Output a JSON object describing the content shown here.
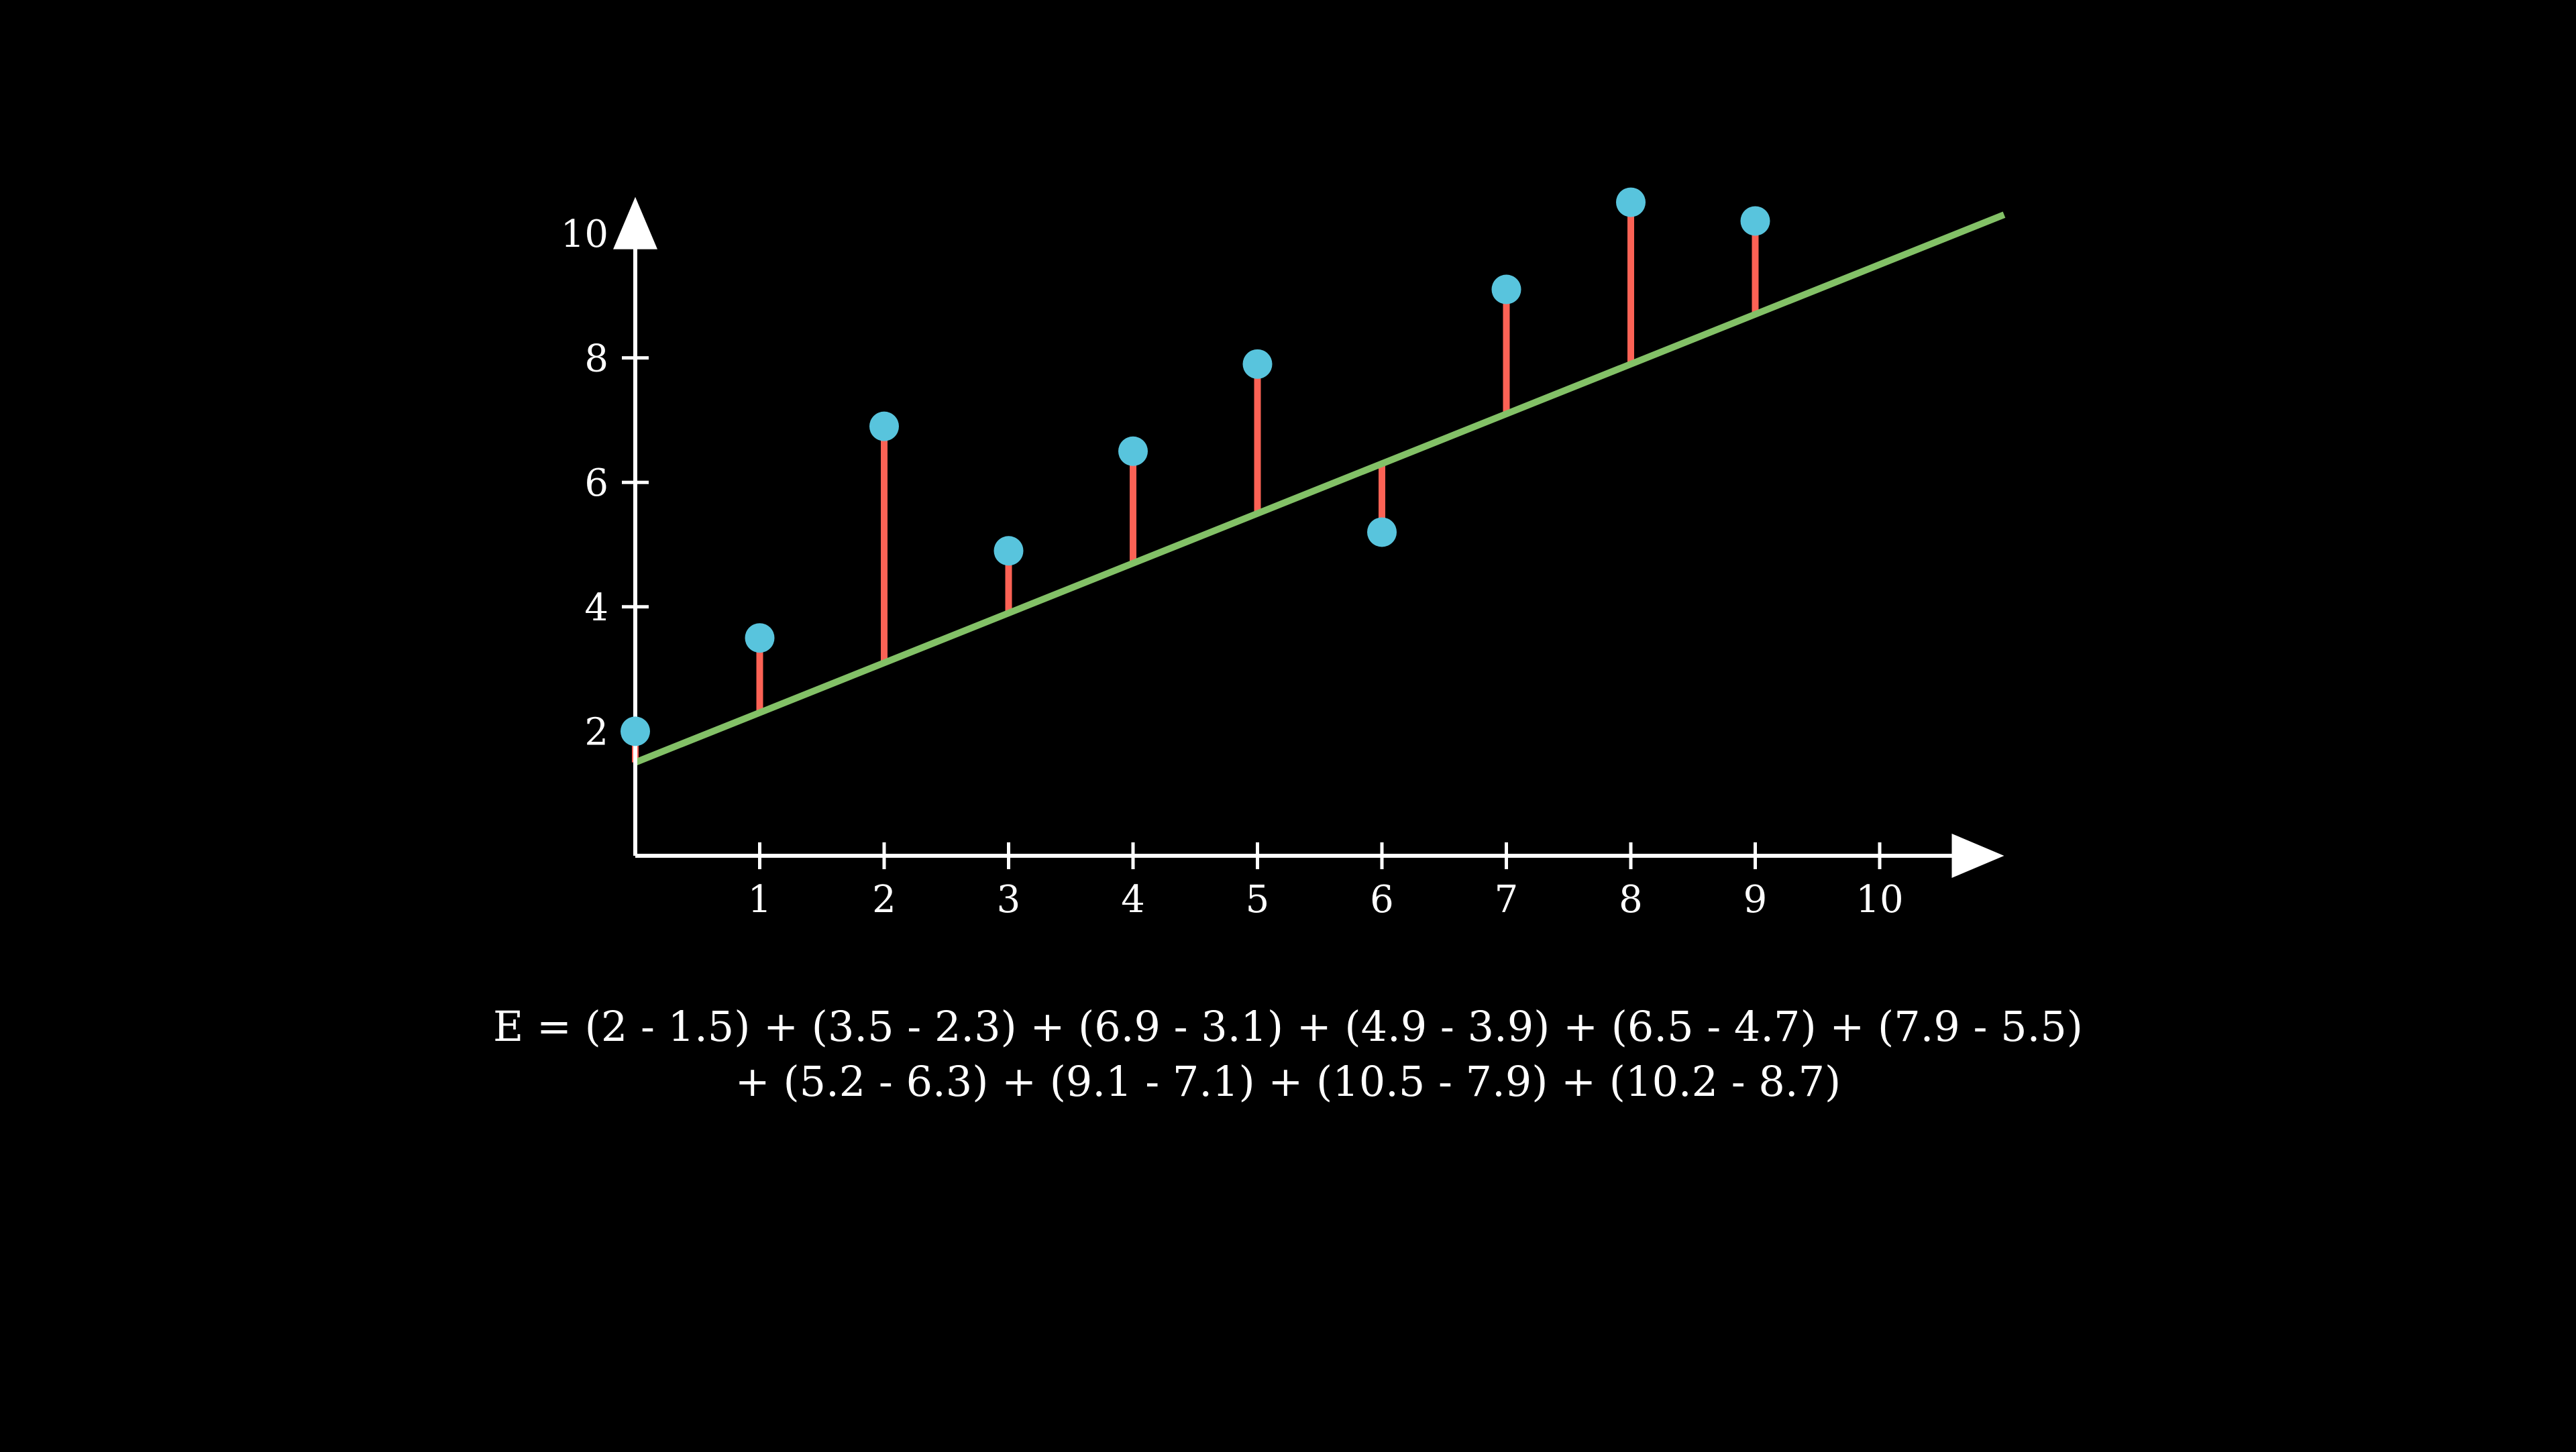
{
  "chart_data": {
    "type": "scatter",
    "title": "",
    "xlabel": "",
    "ylabel": "",
    "xlim": [
      0,
      11
    ],
    "ylim": [
      0,
      10.5
    ],
    "x_ticks": [
      1,
      2,
      3,
      4,
      5,
      6,
      7,
      8,
      9,
      10
    ],
    "y_ticks": [
      2,
      4,
      6,
      8,
      10
    ],
    "grid": false,
    "series": [
      {
        "type": "scatter",
        "x": [
          0,
          1,
          2,
          3,
          4,
          5,
          6,
          7,
          8,
          9
        ],
        "y": [
          2,
          3.5,
          6.9,
          4.9,
          6.5,
          7.9,
          5.2,
          9.1,
          10.5,
          10.2
        ]
      },
      {
        "type": "line",
        "x": [
          0,
          11
        ],
        "y": [
          1.5,
          10.3
        ]
      },
      {
        "type": "residuals",
        "x": [
          0,
          1,
          2,
          3,
          4,
          5,
          6,
          7,
          8,
          9
        ],
        "y_from": [
          2,
          3.5,
          6.9,
          4.9,
          6.5,
          7.9,
          5.2,
          9.1,
          10.5,
          10.2
        ],
        "y_to": [
          1.5,
          2.3,
          3.1,
          3.9,
          4.7,
          5.5,
          6.3,
          7.1,
          7.9,
          8.7
        ]
      }
    ]
  },
  "equation": {
    "line1": "E = (2 - 1.5) + (3.5 - 2.3) + (6.9 - 3.1) + (4.9 - 3.9) + (6.5 - 4.7) + (7.9 - 5.5)",
    "line2": "+ (5.2 - 6.3) + (9.1 - 7.1) + (10.5 - 7.9) + (10.2 - 8.7)"
  },
  "colors": {
    "background": "#000000",
    "axis": "#ffffff",
    "point": "#58c4dd",
    "fit_line": "#83c167",
    "residual": "#fc6255",
    "text": "#ffffff"
  }
}
